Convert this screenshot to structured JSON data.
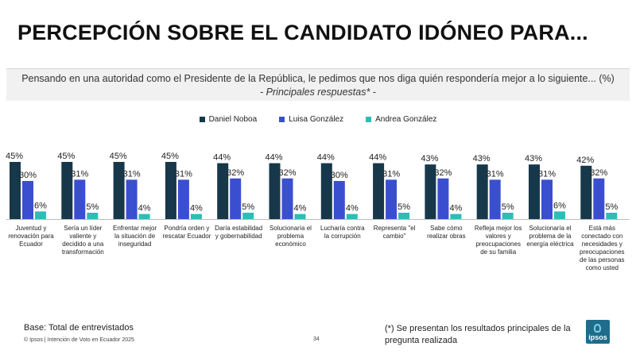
{
  "page": {
    "title": "PERCEPCIÓN SOBRE EL CANDIDATO IDÓNEO PARA...",
    "subtitle": "Pensando en una autoridad como el Presidente de la República, le pedimos que nos diga quién respondería mejor a lo siguiente... (%)",
    "subtitle2": "- Principales respuestas* -",
    "base": "Base: Total de entrevistados",
    "copyright": "© Ipsos | Intención de Voto en Ecuador 2025",
    "page_number": "34",
    "note": "(*) Se presentan los resultados principales de la pregunta realizada",
    "logo_text": "ipsos"
  },
  "colors": {
    "noboa": "#17384a",
    "gonzalez_l": "#3a4fd0",
    "gonzalez_a": "#2dbdb8"
  },
  "chart_data": {
    "type": "bar",
    "title": "PERCEPCIÓN SOBRE EL CANDIDATO IDÓNEO PARA...",
    "ylim": [
      0,
      50
    ],
    "grid": false,
    "legend_position": "top-center",
    "categories": [
      [
        "Juventud y",
        "renovación para",
        "Ecuador"
      ],
      [
        "Sería un líder",
        "valiente y",
        "decidido a una",
        "transformación"
      ],
      [
        "Enfrentar mejor",
        "la situación de",
        "inseguridad"
      ],
      [
        "Pondría orden y",
        "rescatar Ecuador"
      ],
      [
        "Daría estabilidad",
        "y gobernabilidad"
      ],
      [
        "Solucionaría el",
        "problema",
        "económico"
      ],
      [
        "Lucharía contra",
        "la corrupción"
      ],
      [
        "Representa \"el",
        "cambio\""
      ],
      [
        "Sabe cómo",
        "realizar obras"
      ],
      [
        "Refleja mejor los",
        "valores y",
        "preocupaciones",
        "de su familia"
      ],
      [
        "Solucionaría el",
        "problema de la",
        "energía eléctrica"
      ],
      [
        "Está más",
        "conectado con",
        "necesidades y",
        "preocupaciones",
        "de las personas",
        "como usted"
      ]
    ],
    "series": [
      {
        "name": "Daniel Noboa",
        "color": "#17384a",
        "values": [
          45,
          45,
          45,
          45,
          44,
          44,
          44,
          44,
          43,
          43,
          43,
          42
        ],
        "labels": [
          "45%",
          "45%",
          "45%",
          "45%",
          "44%",
          "44%",
          "44%",
          "44%",
          "43%",
          "43%",
          "43%",
          "42%"
        ]
      },
      {
        "name": "Luisa González",
        "color": "#3a4fd0",
        "values": [
          30,
          31,
          31,
          31,
          32,
          32,
          30,
          31,
          32,
          31,
          31,
          32
        ],
        "labels": [
          "30%",
          "31%",
          "31%",
          "31%",
          "32%",
          "32%",
          "30%",
          "31%",
          "32%",
          "31%",
          "31%",
          "32%"
        ]
      },
      {
        "name": "Andrea González",
        "color": "#2dbdb8",
        "values": [
          6,
          5,
          4,
          4,
          5,
          4,
          4,
          5,
          4,
          5,
          6,
          5
        ],
        "labels": [
          "6%",
          "5%",
          "4%",
          "4%",
          "5%",
          "4%",
          "4%",
          "5%",
          "4%",
          "5%",
          "6%",
          "5%"
        ]
      }
    ]
  }
}
